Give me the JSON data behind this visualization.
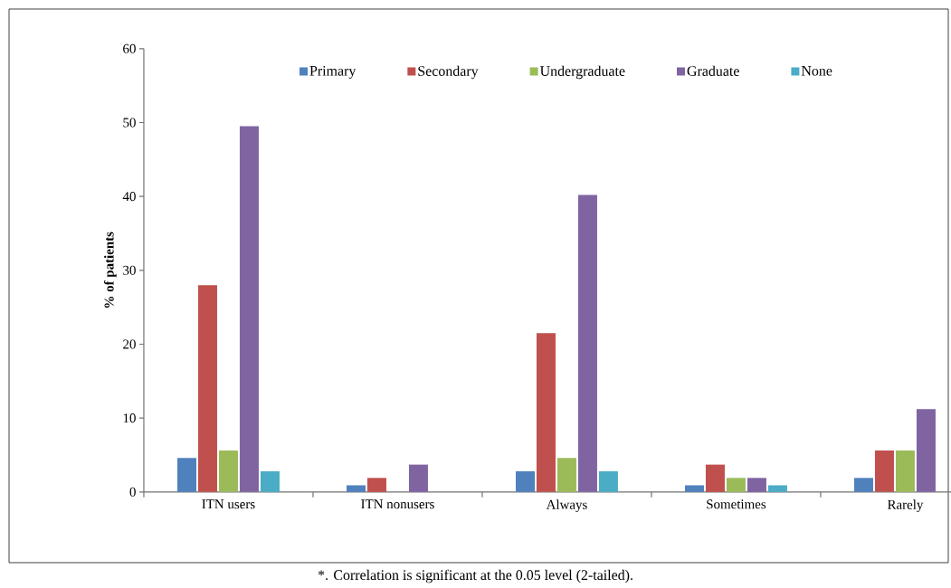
{
  "chart_data": {
    "type": "bar",
    "ylabel": "% of patients",
    "categories": [
      "ITN users",
      "ITN nonusers",
      "Always",
      "Sometimes",
      "Rarely"
    ],
    "series": [
      {
        "name": "Primary",
        "color": "#4f81bd",
        "values": [
          4.6,
          0.9,
          2.8,
          0.9,
          1.9
        ]
      },
      {
        "name": "Secondary",
        "color": "#c0504d",
        "values": [
          28.0,
          1.9,
          21.5,
          3.7,
          5.6
        ]
      },
      {
        "name": "Undergraduate",
        "color": "#9bbb59",
        "values": [
          5.6,
          0,
          4.6,
          1.9,
          5.6
        ]
      },
      {
        "name": "Graduate",
        "color": "#8064a2",
        "values": [
          49.5,
          3.7,
          40.2,
          1.9,
          11.2
        ]
      },
      {
        "name": "None",
        "color": "#4bacc6",
        "values": [
          2.8,
          0,
          2.8,
          0.9,
          0
        ]
      }
    ],
    "ylim": [
      0,
      60
    ],
    "yticks": [
      0,
      10,
      20,
      30,
      40,
      50,
      60
    ],
    "legend": "top",
    "annotations": [
      "*. Correlation is significant at the 0.05 level (2-tailed)."
    ]
  }
}
